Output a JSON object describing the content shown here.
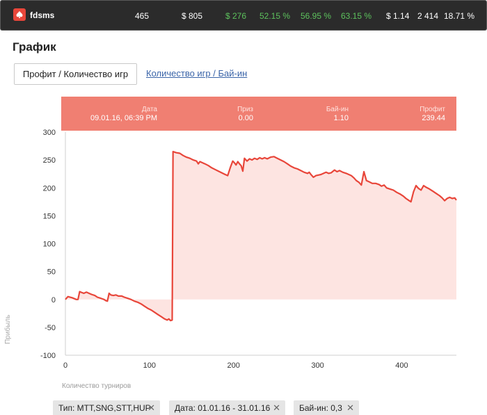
{
  "topbar": {
    "user": "fdsms",
    "stats": [
      "465",
      "$ 805",
      "$ 276",
      "52.15 %",
      "56.95 %",
      "63.15 %",
      "$ 1.14",
      "2 414",
      "18.71 %"
    ],
    "green_indices": [
      2,
      3,
      4,
      5
    ],
    "logo_color": "#e8463a",
    "green_color": "#5dc25d"
  },
  "page": {
    "title": "График",
    "tab_active": "Профит / Количество игр",
    "tab_link": "Количество игр / Бай-ин"
  },
  "tooltip": {
    "date_label": "Дата",
    "date_value": "09.01.16, 06:39 PM",
    "prize_label": "Приз",
    "prize_value": "0.00",
    "buyin_label": "Бай-ин",
    "buyin_value": "1.10",
    "profit_label": "Профит",
    "profit_value": "239.44",
    "bg_color": "#f07f72"
  },
  "chart_data": {
    "type": "area",
    "xlabel": "Количество турниров",
    "ylabel": "Прибыль",
    "xlim": [
      0,
      465
    ],
    "ylim": [
      -100,
      300
    ],
    "x_ticks": [
      0,
      100,
      200,
      300,
      400
    ],
    "y_ticks": [
      300,
      250,
      200,
      150,
      100,
      50,
      0,
      -50,
      -100
    ],
    "line_color": "#e8463a",
    "fill_color": "#fde4e1",
    "series": [
      {
        "points": [
          [
            0,
            0
          ],
          [
            3,
            5
          ],
          [
            8,
            3
          ],
          [
            13,
            0
          ],
          [
            15,
            0
          ],
          [
            17,
            14
          ],
          [
            20,
            12
          ],
          [
            22,
            11
          ],
          [
            25,
            13
          ],
          [
            28,
            11
          ],
          [
            31,
            9
          ],
          [
            35,
            7
          ],
          [
            38,
            4
          ],
          [
            42,
            2
          ],
          [
            46,
            0
          ],
          [
            48,
            -2
          ],
          [
            50,
            -3
          ],
          [
            52,
            11
          ],
          [
            54,
            8
          ],
          [
            57,
            7
          ],
          [
            60,
            8
          ],
          [
            63,
            6
          ],
          [
            67,
            6
          ],
          [
            70,
            4
          ],
          [
            74,
            2
          ],
          [
            78,
            0
          ],
          [
            82,
            -3
          ],
          [
            86,
            -5
          ],
          [
            90,
            -8
          ],
          [
            94,
            -12
          ],
          [
            98,
            -16
          ],
          [
            102,
            -19
          ],
          [
            106,
            -23
          ],
          [
            110,
            -27
          ],
          [
            114,
            -31
          ],
          [
            118,
            -35
          ],
          [
            121,
            -37
          ],
          [
            123,
            -35
          ],
          [
            125,
            -38
          ],
          [
            127,
            -37
          ],
          [
            128,
            265
          ],
          [
            132,
            263
          ],
          [
            136,
            262
          ],
          [
            140,
            258
          ],
          [
            144,
            255
          ],
          [
            148,
            253
          ],
          [
            152,
            250
          ],
          [
            156,
            248
          ],
          [
            158,
            243
          ],
          [
            160,
            247
          ],
          [
            163,
            245
          ],
          [
            166,
            243
          ],
          [
            170,
            240
          ],
          [
            174,
            236
          ],
          [
            178,
            233
          ],
          [
            182,
            230
          ],
          [
            186,
            227
          ],
          [
            190,
            224
          ],
          [
            193,
            222
          ],
          [
            196,
            236
          ],
          [
            199,
            248
          ],
          [
            201,
            245
          ],
          [
            203,
            241
          ],
          [
            205,
            247
          ],
          [
            207,
            243
          ],
          [
            209,
            240
          ],
          [
            211,
            230
          ],
          [
            213,
            253
          ],
          [
            216,
            248
          ],
          [
            219,
            252
          ],
          [
            222,
            250
          ],
          [
            225,
            253
          ],
          [
            228,
            251
          ],
          [
            231,
            254
          ],
          [
            234,
            252
          ],
          [
            237,
            254
          ],
          [
            240,
            252
          ],
          [
            244,
            255
          ],
          [
            248,
            256
          ],
          [
            252,
            253
          ],
          [
            256,
            250
          ],
          [
            260,
            247
          ],
          [
            264,
            243
          ],
          [
            268,
            239
          ],
          [
            272,
            236
          ],
          [
            276,
            234
          ],
          [
            280,
            231
          ],
          [
            284,
            228
          ],
          [
            288,
            226
          ],
          [
            290,
            228
          ],
          [
            292,
            224
          ],
          [
            295,
            219
          ],
          [
            298,
            222
          ],
          [
            301,
            223
          ],
          [
            304,
            224
          ],
          [
            307,
            226
          ],
          [
            310,
            228
          ],
          [
            313,
            226
          ],
          [
            316,
            227
          ],
          [
            320,
            232
          ],
          [
            323,
            229
          ],
          [
            326,
            231
          ],
          [
            330,
            228
          ],
          [
            334,
            226
          ],
          [
            337,
            224
          ],
          [
            340,
            222
          ],
          [
            343,
            218
          ],
          [
            346,
            213
          ],
          [
            349,
            210
          ],
          [
            352,
            205
          ],
          [
            355,
            229
          ],
          [
            358,
            213
          ],
          [
            361,
            211
          ],
          [
            365,
            208
          ],
          [
            369,
            208
          ],
          [
            373,
            206
          ],
          [
            376,
            203
          ],
          [
            379,
            205
          ],
          [
            382,
            200
          ],
          [
            386,
            198
          ],
          [
            390,
            196
          ],
          [
            394,
            192
          ],
          [
            398,
            189
          ],
          [
            402,
            185
          ],
          [
            405,
            181
          ],
          [
            408,
            178
          ],
          [
            411,
            175
          ],
          [
            414,
            193
          ],
          [
            417,
            204
          ],
          [
            420,
            199
          ],
          [
            423,
            196
          ],
          [
            426,
            204
          ],
          [
            429,
            201
          ],
          [
            433,
            198
          ],
          [
            437,
            194
          ],
          [
            441,
            190
          ],
          [
            445,
            186
          ],
          [
            448,
            182
          ],
          [
            451,
            177
          ],
          [
            454,
            181
          ],
          [
            457,
            183
          ],
          [
            460,
            181
          ],
          [
            463,
            182
          ],
          [
            465,
            178
          ]
        ]
      }
    ]
  },
  "filters": [
    "Тип: MTT,SNG,STT,HUP",
    "Дата: 01.01.16 - 31.01.16",
    "Бай-ин: 0,3"
  ]
}
